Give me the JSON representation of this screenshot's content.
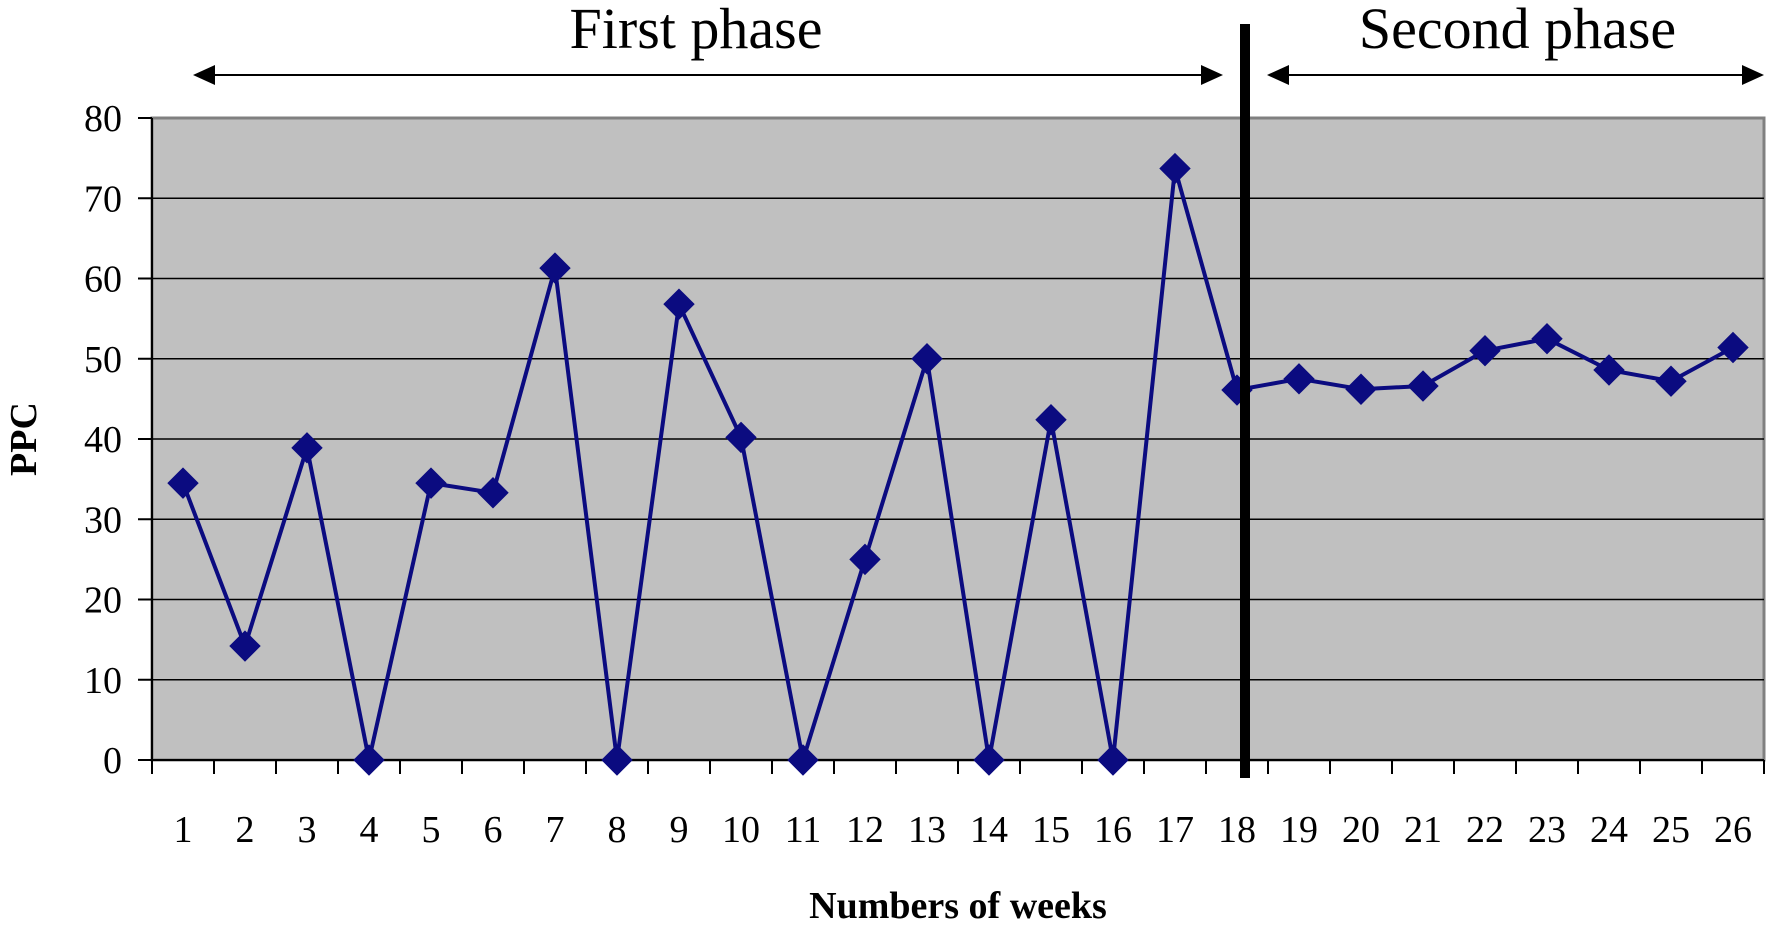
{
  "chart_data": {
    "type": "line",
    "title": "",
    "xlabel": "Numbers of weeks",
    "ylabel": "PPC",
    "ylim": [
      0,
      80
    ],
    "yticks": [
      0,
      10,
      20,
      30,
      40,
      50,
      60,
      70,
      80
    ],
    "x": [
      1,
      2,
      3,
      4,
      5,
      6,
      7,
      8,
      9,
      10,
      11,
      12,
      13,
      14,
      15,
      16,
      17,
      18,
      19,
      20,
      21,
      22,
      23,
      24,
      25,
      26
    ],
    "series": [
      {
        "values": [
          34.5,
          14.2,
          38.9,
          0,
          34.5,
          33.3,
          61.3,
          0,
          56.8,
          40.2,
          0,
          25.0,
          50.0,
          0,
          42.4,
          0,
          73.7,
          46.1,
          47.5,
          46.2,
          46.6,
          51.0,
          52.5,
          48.6,
          47.2,
          51.4
        ],
        "color": "#0b0b80"
      }
    ],
    "grid": true,
    "plot_background": "#c0c0c0",
    "divider_after_week": 18,
    "phases": [
      {
        "label": "First phase",
        "from_week": 1,
        "to_week": 18
      },
      {
        "label": "Second phase",
        "from_week": 18,
        "to_week": 26
      }
    ]
  }
}
